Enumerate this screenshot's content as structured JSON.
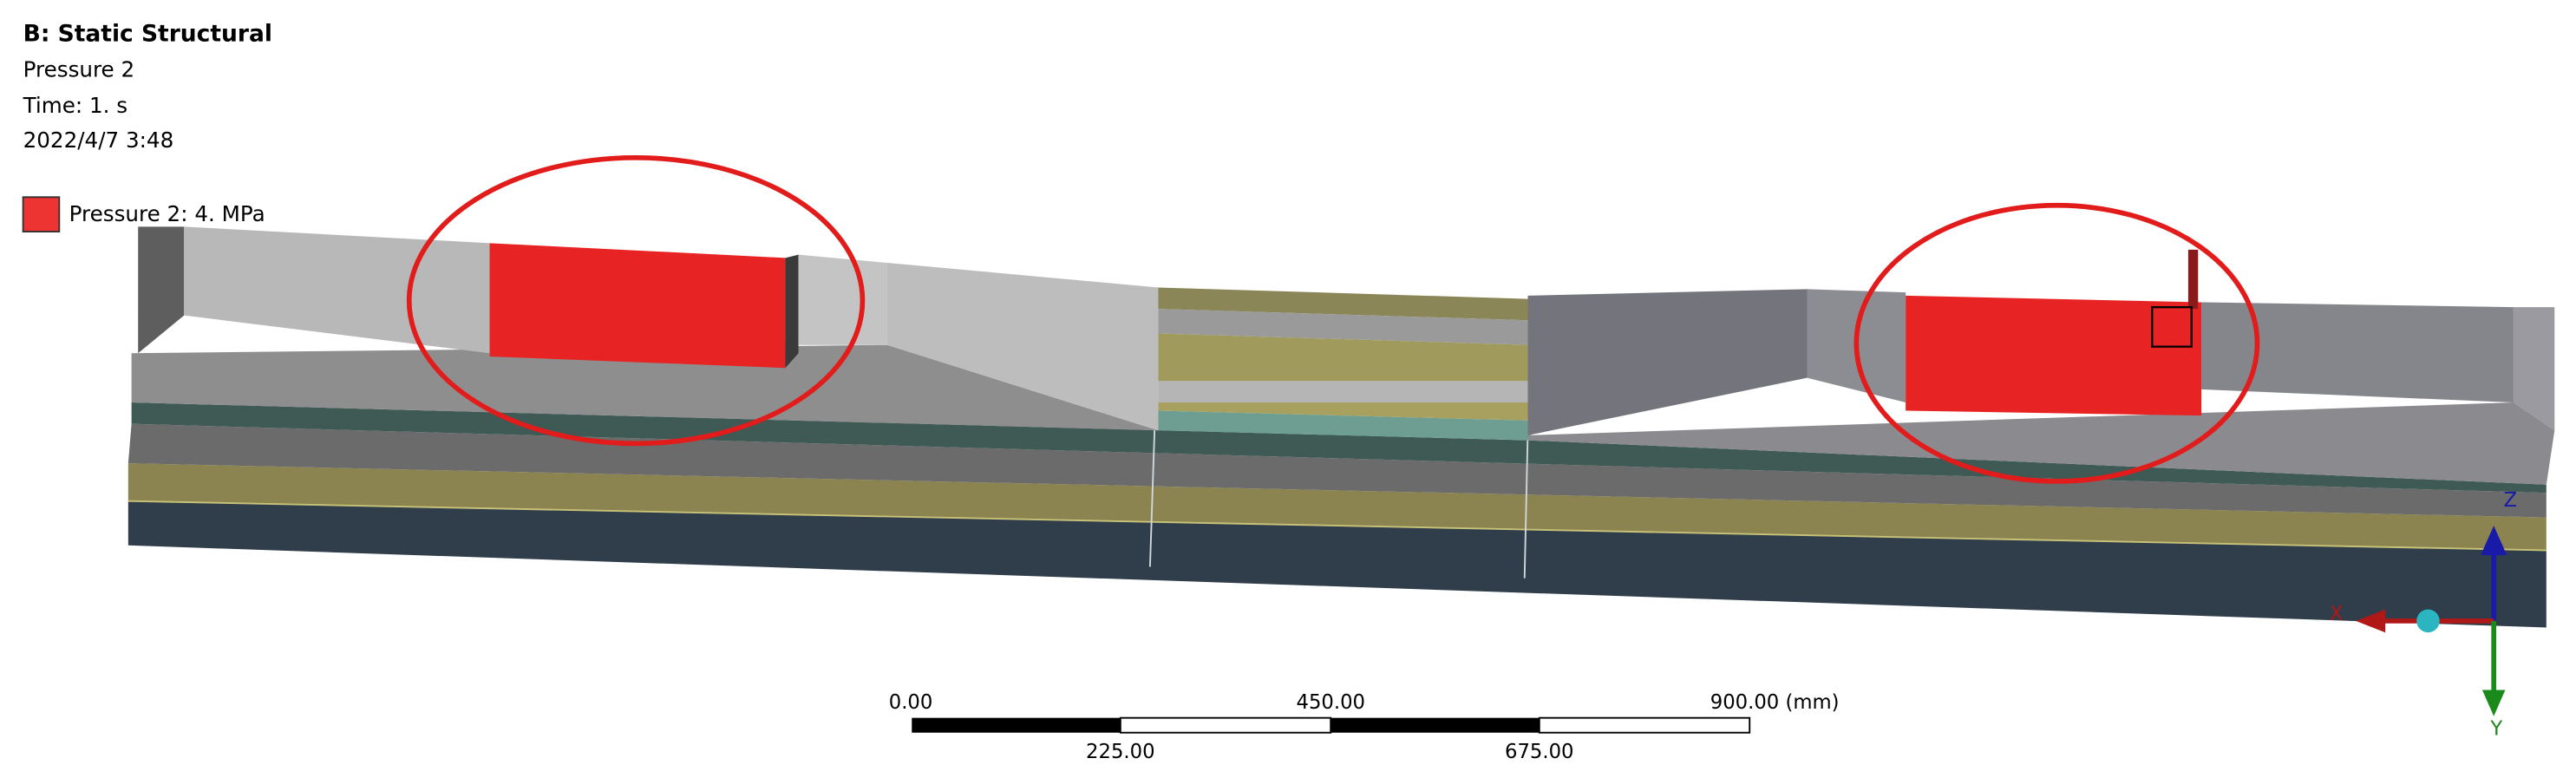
{
  "header": {
    "title": "B: Static Structural",
    "lines": [
      "Pressure 2",
      "Time: 1. s",
      "2022/4/7 3:48"
    ]
  },
  "legend": {
    "label": "Pressure 2: 4. MPa"
  },
  "scale_bar": {
    "top_labels": [
      "0.00",
      "450.00",
      "900.00 (mm)"
    ],
    "bottom_labels": [
      "225.00",
      "675.00"
    ]
  },
  "triad": {
    "x": "X",
    "y": "Y",
    "z": "Z"
  }
}
